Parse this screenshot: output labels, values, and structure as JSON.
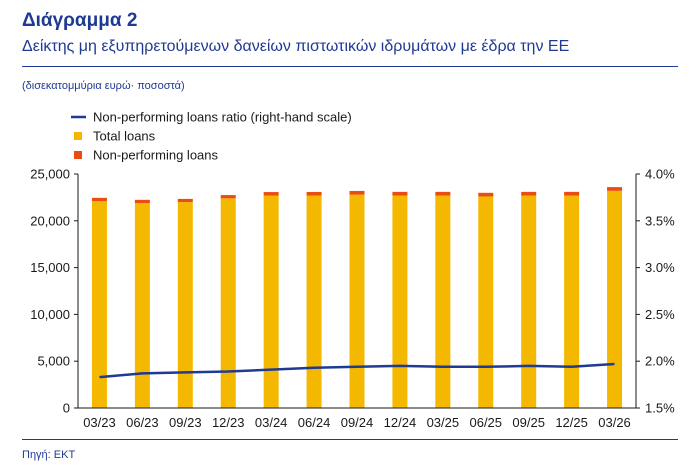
{
  "header": {
    "title": "Διάγραμμα 2",
    "subtitle": "Δείκτης μη εξυπηρετούμενων δανείων πιστωτικών ιδρυμάτων με έδρα την ΕΕ",
    "units": "(δισεκατομμύρια ευρώ· ποσοστά)"
  },
  "footer": {
    "source": "Πηγή: ΕΚΤ"
  },
  "colors": {
    "total_loans": "#f5b800",
    "npl": "#ea4d12",
    "ratio_line": "#1f3a93",
    "brand": "#1f3a93"
  },
  "chart_data": {
    "type": "bar",
    "stacked": true,
    "categories": [
      "03/23",
      "06/23",
      "09/23",
      "12/23",
      "03/24",
      "06/24",
      "09/24",
      "12/24",
      "03/25",
      "06/25",
      "09/25",
      "12/25",
      "03/26"
    ],
    "series": [
      {
        "name": "Total loans",
        "axis": "left",
        "values": [
          22100,
          21900,
          22000,
          22400,
          22700,
          22700,
          22800,
          22700,
          22700,
          22600,
          22700,
          22700,
          23200
        ]
      },
      {
        "name": "Non-performing loans",
        "axis": "left",
        "values": [
          350,
          340,
          340,
          350,
          370,
          380,
          390,
          390,
          390,
          390,
          390,
          390,
          400
        ]
      },
      {
        "name": "Non-performing loans ratio (right-hand scale)",
        "axis": "right",
        "type": "line",
        "values": [
          1.83,
          1.87,
          1.88,
          1.89,
          1.91,
          1.93,
          1.94,
          1.95,
          1.94,
          1.94,
          1.95,
          1.94,
          1.97
        ]
      }
    ],
    "legend": [
      "Non-performing loans ratio (right-hand scale)",
      "Total loans",
      "Non-performing loans"
    ],
    "legend_position": "top-left",
    "ylim": [
      0,
      25000
    ],
    "y_ticks": [
      "0",
      "5,000",
      "10,000",
      "15,000",
      "20,000",
      "25,000"
    ],
    "y2lim": [
      1.5,
      4.0
    ],
    "y2_ticks": [
      "1.5%",
      "2.0%",
      "2.5%",
      "3.0%",
      "3.5%",
      "4.0%"
    ],
    "grid": false
  }
}
